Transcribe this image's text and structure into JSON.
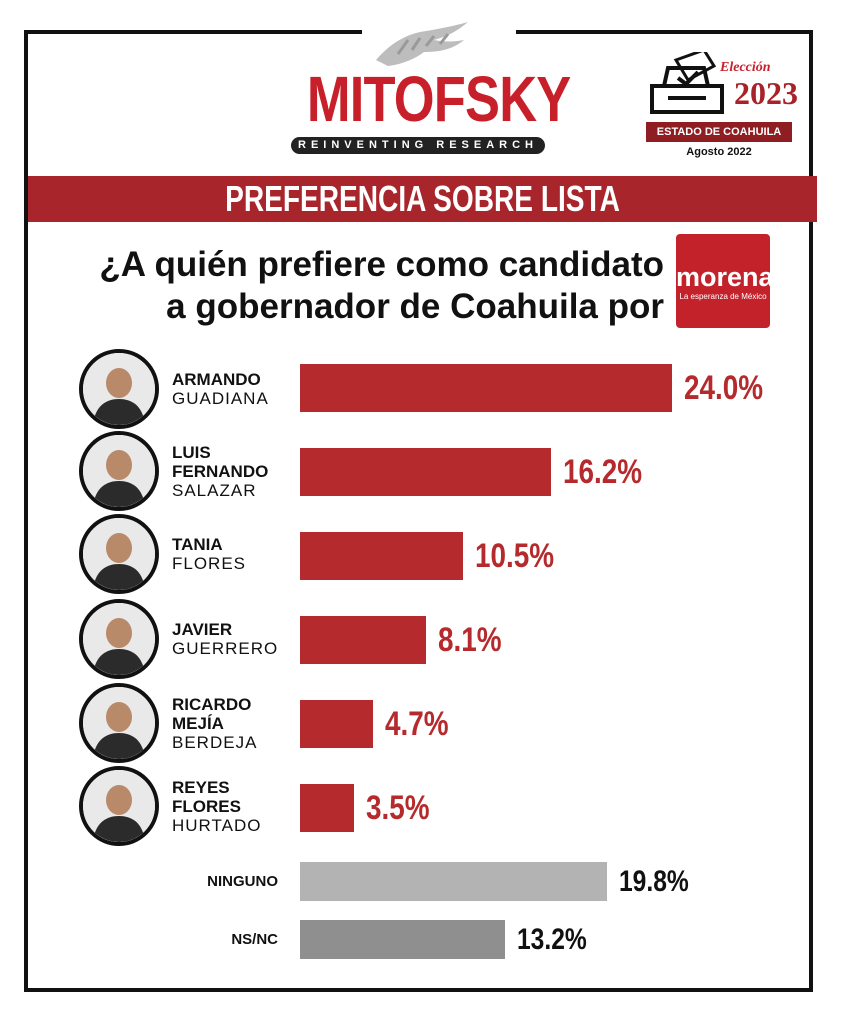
{
  "brand": {
    "name": "MITOFSKY",
    "tagline": "REINVENTING RESEARCH"
  },
  "badge": {
    "title": "Elección",
    "year": "2023",
    "state": "ESTADO DE COAHUILA",
    "date": "Agosto 2022"
  },
  "banner": "PREFERENCIA SOBRE LISTA",
  "question": {
    "line1": "¿A quién prefiere como candidato",
    "line2": "a gobernador de Coahuila por"
  },
  "party_logo": {
    "name": "morena",
    "slogan": "La esperanza de México"
  },
  "colors": {
    "candidate_bar": "#b52a2c",
    "ninguno_bar": "#b3b3b3",
    "nsnc_bar": "#8f8f8f",
    "candidate_value": "#b52a2c",
    "other_value": "#111111"
  },
  "chart_data": {
    "type": "bar",
    "orientation": "horizontal",
    "unit": "%",
    "xlim": [
      0,
      24
    ],
    "categories": [
      {
        "bold": "ARMANDO",
        "light": "GUADIANA",
        "value": 24.0,
        "label": "24.0%",
        "kind": "candidate"
      },
      {
        "bold": "LUIS FERNANDO",
        "light": "SALAZAR",
        "value": 16.2,
        "label": "16.2%",
        "kind": "candidate"
      },
      {
        "bold": "TANIA",
        "light": "FLORES",
        "value": 10.5,
        "label": "10.5%",
        "kind": "candidate"
      },
      {
        "bold": "JAVIER",
        "light": "GUERRERO",
        "value": 8.1,
        "label": "8.1%",
        "kind": "candidate"
      },
      {
        "bold": "RICARDO MEJÍA",
        "light": "BERDEJA",
        "value": 4.7,
        "label": "4.7%",
        "kind": "candidate"
      },
      {
        "bold": "REYES FLORES",
        "light": "HURTADO",
        "value": 3.5,
        "label": "3.5%",
        "kind": "candidate"
      },
      {
        "bold": "NINGUNO",
        "light": "",
        "value": 19.8,
        "label": "19.8%",
        "kind": "ninguno"
      },
      {
        "bold": "NS/NC",
        "light": "",
        "value": 13.2,
        "label": "13.2%",
        "kind": "nsnc"
      }
    ]
  }
}
